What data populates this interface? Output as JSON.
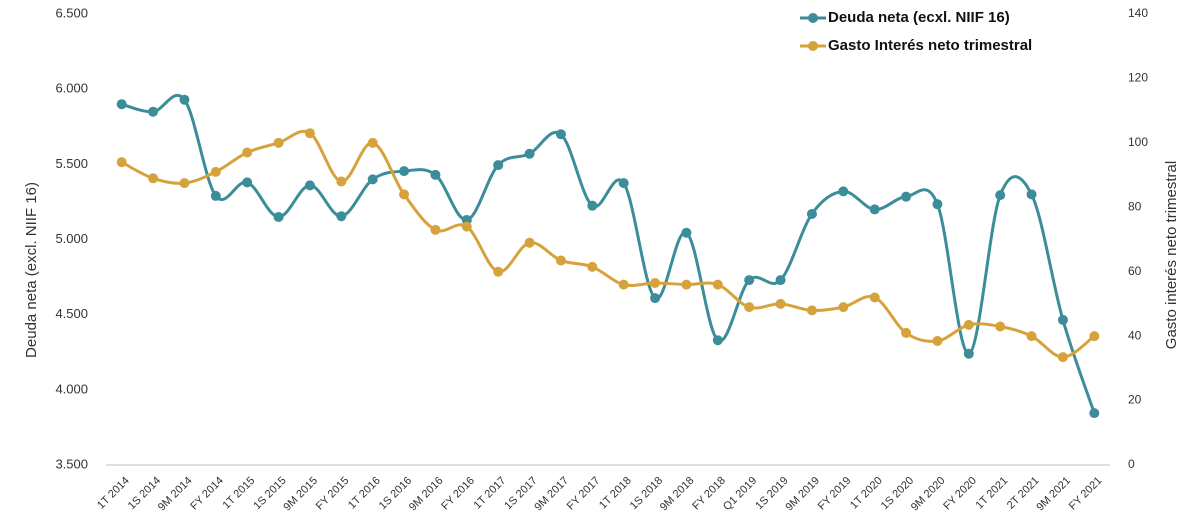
{
  "chart_data": {
    "type": "line",
    "categories": [
      "1T 2014",
      "1S 2014",
      "9M 2014",
      "FY 2014",
      "1T 2015",
      "1S 2015",
      "9M 2015",
      "FY 2015",
      "1T 2016",
      "1S 2016",
      "9M 2016",
      "FY 2016",
      "1T 2017",
      "1S 2017",
      "9M 2017",
      "FY 2017",
      "1T 2018",
      "1S 2018",
      "9M 2018",
      "FY 2018",
      "Q1 2019",
      "1S 2019",
      "9M 2019",
      "FY 2019",
      "1T 2020",
      "1S 2020",
      "9M 2020",
      "FY 2020",
      "1T 2021",
      "2T 2021",
      "9M 2021",
      "FY 2021"
    ],
    "series": [
      {
        "name": "Deuda neta (ecxl. NIIF 16)",
        "color": "#3b8d99",
        "axis": "y",
        "values": [
          5900,
          5850,
          5930,
          5290,
          5380,
          5150,
          5360,
          5155,
          5400,
          5455,
          5430,
          5130,
          5495,
          5570,
          5700,
          5225,
          5375,
          4610,
          5045,
          4330,
          4730,
          4730,
          5170,
          5320,
          5200,
          5285,
          5235,
          4240,
          5295,
          5300,
          4465,
          3845
        ]
      },
      {
        "name": "Gasto Interés neto trimestral",
        "color": "#d6a23c",
        "axis": "y2",
        "values": [
          94,
          89,
          87.5,
          91,
          97,
          100,
          103,
          88,
          100,
          84,
          73,
          74,
          60,
          69,
          63.5,
          61.5,
          56,
          56.5,
          56,
          56,
          49,
          50,
          48,
          49,
          52,
          41,
          38.5,
          43.5,
          43,
          40,
          33.5,
          40
        ]
      }
    ],
    "ylabel": "Deuda neta (excl. NIIF 16)",
    "y2label": "Gasto interés neto trimestral",
    "ylim": [
      3500,
      6500
    ],
    "yticks": [
      {
        "value": 3500,
        "label": "3.500"
      },
      {
        "value": 4000,
        "label": "4.000"
      },
      {
        "value": 4500,
        "label": "4.500"
      },
      {
        "value": 5000,
        "label": "5.000"
      },
      {
        "value": 5500,
        "label": "5.500"
      },
      {
        "value": 6000,
        "label": "6.000"
      },
      {
        "value": 6500,
        "label": "6.500"
      }
    ],
    "y2lim": [
      0,
      140
    ],
    "y2ticks": [
      0,
      20,
      40,
      60,
      80,
      100,
      120,
      140
    ],
    "legend": "top-right",
    "grid": false
  }
}
